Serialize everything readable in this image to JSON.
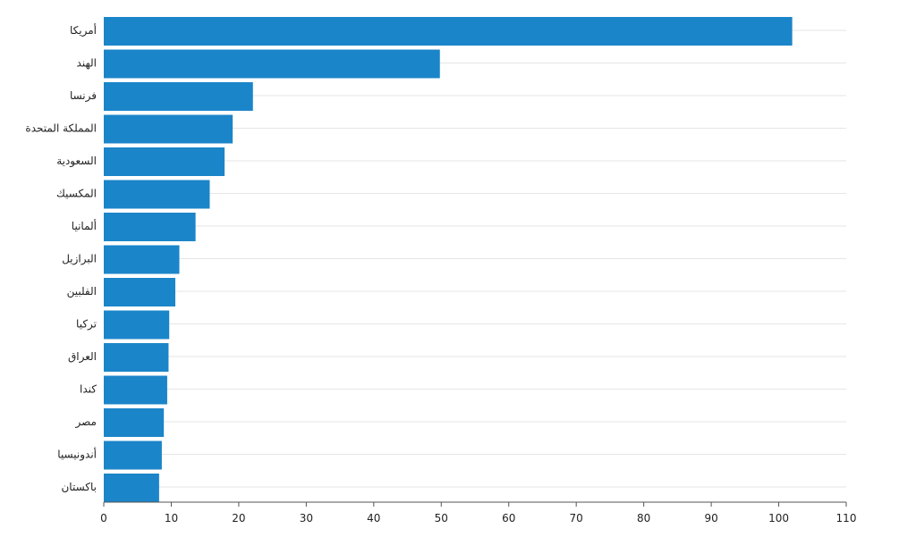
{
  "chart_data": {
    "type": "bar",
    "orientation": "horizontal",
    "categories": [
      "أمريكا",
      "الهند",
      "فرنسا",
      "المملكة المتحدة",
      "السعودية",
      "المكسيك",
      "ألمانيا",
      "البرازيل",
      "الفلبين",
      "تركيا",
      "العراق",
      "كندا",
      "مصر",
      "أندونيسيا",
      "باكستان"
    ],
    "values": [
      102,
      49.8,
      22.1,
      19.1,
      17.9,
      15.7,
      13.6,
      11.2,
      10.6,
      9.7,
      9.6,
      9.4,
      8.9,
      8.6,
      8.2
    ],
    "xlim": [
      0,
      110
    ],
    "xticks": [
      0,
      10,
      20,
      30,
      40,
      50,
      60,
      70,
      80,
      90,
      100,
      110
    ],
    "grid": true,
    "legend": "none",
    "bar_color": "#1b85c9",
    "title": "",
    "xlabel": "",
    "ylabel": ""
  }
}
